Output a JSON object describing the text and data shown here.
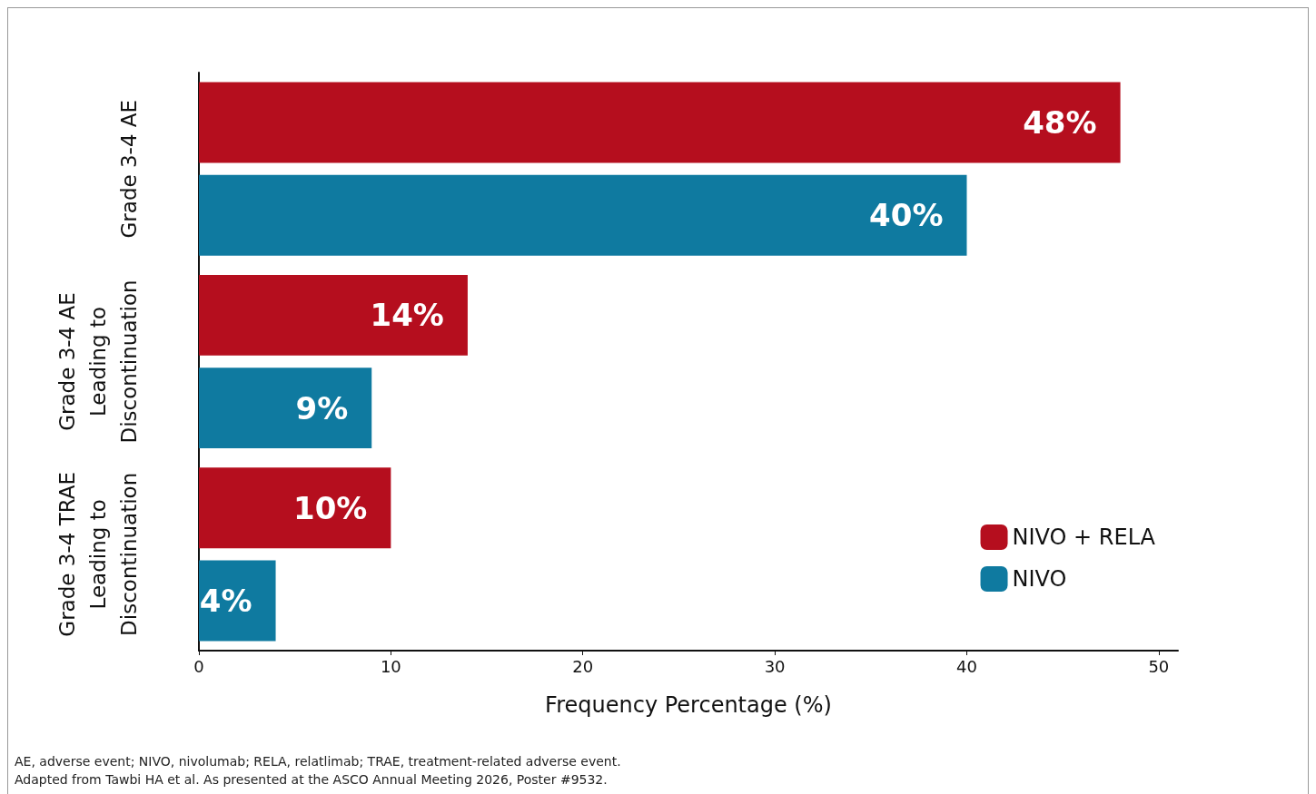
{
  "chart_data": {
    "type": "bar",
    "orientation": "horizontal",
    "xlabel": "Frequency Percentage (%)",
    "categories": [
      "Grade 3-4 AE",
      "Grade 3-4 AE\nLeading to\nDiscontinuation",
      "Grade 3-4 TRAE\nLeading to\nDiscontinuation"
    ],
    "series": [
      {
        "name": "NIVO + RELA",
        "color": "#b50e1e",
        "values": [
          48,
          14,
          10
        ],
        "value_labels": [
          "48%",
          "14%",
          "10%"
        ]
      },
      {
        "name": "NIVO",
        "color": "#0f7aa0",
        "values": [
          40,
          9,
          4
        ],
        "value_labels": [
          "40%",
          "9%",
          "4%"
        ]
      }
    ],
    "xlim": [
      0,
      51
    ],
    "xticks": [
      0,
      10,
      20,
      30,
      40,
      50
    ],
    "grid": false,
    "legend": "bottom right",
    "annotations": [
      "AE, adverse event; NIVO, nivolumab; RELA, relatlimab; TRAE, treatment-related adverse event.",
      "Adapted from Tawbi HA et al. As presented at the ASCO Annual Meeting 2026, Poster #9532."
    ]
  }
}
